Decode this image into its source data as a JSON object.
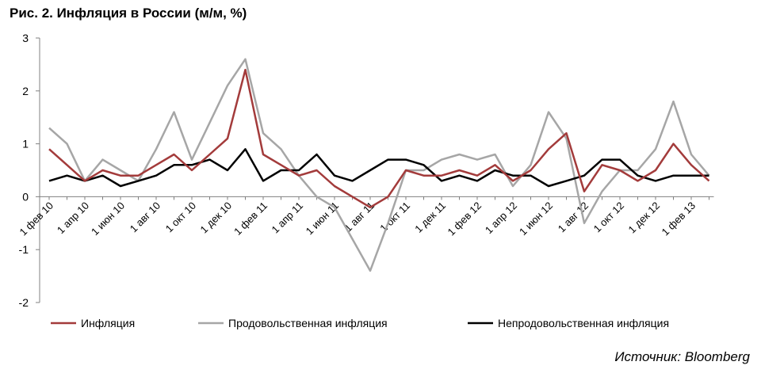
{
  "title": "Рис. 2. Инфляция в России (м/м, %)",
  "source": "Источник: Bloomberg",
  "chart_data": {
    "type": "line",
    "title": "Рис. 2. Инфляция в России (м/м, %)",
    "xlabel": "",
    "ylabel": "",
    "ylim": [
      -2,
      3
    ],
    "yticks": [
      -2,
      -1,
      0,
      1,
      2,
      3
    ],
    "grid": false,
    "legend": "bottom",
    "x_tick_labels": [
      "1 фев 10",
      "1 апр 10",
      "1 июн 10",
      "1 авг 10",
      "1 окт 10",
      "1 дек 10",
      "1 фев 11",
      "1 апр 11",
      "1 июн 11",
      "1 авг 11",
      "1 окт 11",
      "1 дек 11",
      "1 фев 12",
      "1 апр 12",
      "1 июн 12",
      "1 авг 12",
      "1 окт 12",
      "1 дек 12",
      "1 фев 13"
    ],
    "x_tick_positions": [
      0,
      2,
      4,
      6,
      8,
      10,
      12,
      14,
      16,
      18,
      20,
      22,
      24,
      26,
      28,
      30,
      32,
      34,
      36
    ],
    "series": [
      {
        "name": "Инфляция",
        "color": "#a33b3b",
        "values": [
          0.9,
          0.6,
          0.3,
          0.5,
          0.4,
          0.4,
          0.6,
          0.8,
          0.5,
          0.8,
          1.1,
          2.4,
          0.8,
          0.6,
          0.4,
          0.5,
          0.2,
          0.0,
          -0.2,
          0.0,
          0.5,
          0.4,
          0.4,
          0.5,
          0.4,
          0.6,
          0.3,
          0.5,
          0.9,
          1.2,
          0.1,
          0.6,
          0.5,
          0.3,
          0.5,
          1.0,
          0.6,
          0.3
        ]
      },
      {
        "name": "Продовольственная инфляция",
        "color": "#a6a6a6",
        "values": [
          1.3,
          1.0,
          0.3,
          0.7,
          0.5,
          0.3,
          0.9,
          1.6,
          0.7,
          1.4,
          2.1,
          2.6,
          1.2,
          0.9,
          0.4,
          0.0,
          -0.2,
          -0.8,
          -1.4,
          -0.5,
          0.5,
          0.5,
          0.7,
          0.8,
          0.7,
          0.8,
          0.2,
          0.6,
          1.6,
          1.1,
          -0.5,
          0.1,
          0.5,
          0.5,
          0.9,
          1.8,
          0.8,
          0.4
        ]
      },
      {
        "name": "Непродовольственная инфляция",
        "color": "#000000",
        "values": [
          0.3,
          0.4,
          0.3,
          0.4,
          0.2,
          0.3,
          0.4,
          0.6,
          0.6,
          0.7,
          0.5,
          0.9,
          0.3,
          0.5,
          0.5,
          0.8,
          0.4,
          0.3,
          0.5,
          0.7,
          0.7,
          0.6,
          0.3,
          0.4,
          0.3,
          0.5,
          0.4,
          0.4,
          0.2,
          0.3,
          0.4,
          0.7,
          0.7,
          0.4,
          0.3,
          0.4,
          0.4,
          0.4
        ]
      }
    ]
  }
}
